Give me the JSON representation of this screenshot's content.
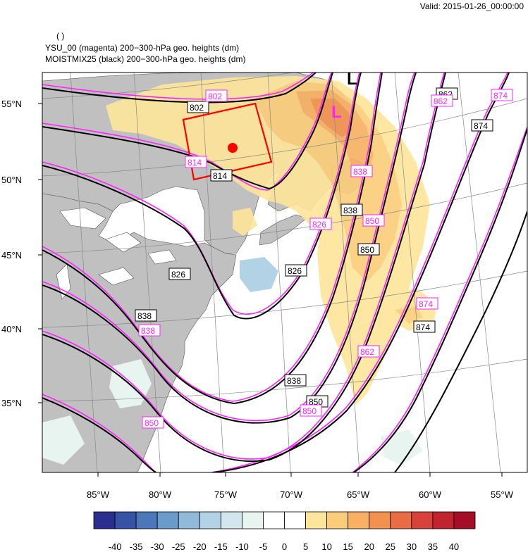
{
  "header": {
    "valid": "Valid: 2015-01-26_00:00:00",
    "paren": "( )",
    "line1": "YSU_00 (magenta) 200−300-hPa geo. heights   (dm)",
    "line2": "MOISTMIX25 (black) 200−300-hPa geo. heights   (dm)"
  },
  "map": {
    "lat_labels": [
      "55°N",
      "50°N",
      "45°N",
      "40°N",
      "35°N"
    ],
    "lon_labels": [
      "85°W",
      "80°W",
      "75°W",
      "70°W",
      "65°W",
      "60°W",
      "55°W"
    ],
    "black_contour_labels": [
      "802",
      "814",
      "826",
      "826",
      "838",
      "838",
      "850",
      "850",
      "862",
      "874",
      "874"
    ],
    "magenta_contour_labels": [
      "802",
      "814",
      "826",
      "838",
      "838",
      "850",
      "850",
      "862",
      "862",
      "874",
      "874",
      "850"
    ],
    "low_marker_black": "L",
    "low_marker_magenta": "L",
    "colors": {
      "land": "#c0c0c0",
      "black_contour": "#000000",
      "magenta_contour": "#ff22ff",
      "box": "#ff0000"
    }
  },
  "colorbar": {
    "labels": [
      "-40",
      "-35",
      "-30",
      "-25",
      "-20",
      "-15",
      "-10",
      "-5",
      "0",
      "5",
      "10",
      "15",
      "20",
      "25",
      "30",
      "35",
      "40"
    ],
    "colors": [
      "#2a2f8f",
      "#3654a6",
      "#4a78b8",
      "#6a9bcb",
      "#8fbad9",
      "#b2d3e6",
      "#d1e7ed",
      "#e8f4ef",
      "#ffffff",
      "#ffffff",
      "#fde59a",
      "#fbcd7a",
      "#f8b062",
      "#f3924f",
      "#e96c44",
      "#d9423b",
      "#c1232f",
      "#a50f25"
    ]
  }
}
